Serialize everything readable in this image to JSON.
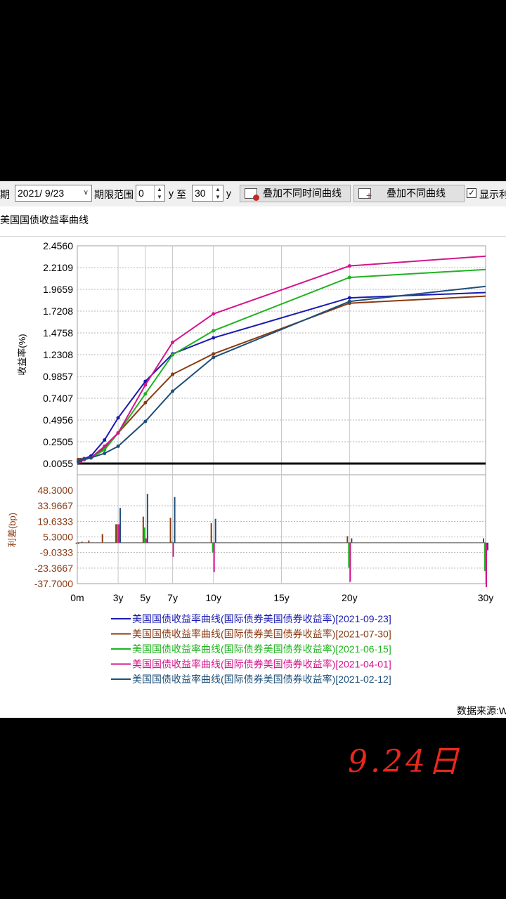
{
  "toolbar": {
    "date_label": "日期",
    "date_value": "2021/  9/23",
    "range_label": "期限范围",
    "range_from": "0",
    "unit_y1": "y",
    "to_label": "至",
    "range_to": "30",
    "unit_y2": "y",
    "btn_overlay_time": "叠加不同时间曲线",
    "btn_overlay_curve": "叠加不同曲线",
    "show_label": "显示利差"
  },
  "subtitle": "美国国债收益率曲线",
  "source_label": "数据来源:Wind",
  "date_stamp": "9.24日",
  "chart_data": {
    "type": "line",
    "upper": {
      "ylabel": "收益率(%)",
      "ylim": [
        0.0055,
        2.456
      ],
      "yticks": [
        "2.4560",
        "2.2109",
        "1.9659",
        "1.7208",
        "1.4758",
        "1.2308",
        "0.9857",
        "0.7407",
        "0.4956",
        "0.2505",
        "0.0055"
      ],
      "baseline": 0.0055
    },
    "lower": {
      "type": "bar",
      "ylabel": "利差(bp)",
      "ylim": [
        -37.7,
        48.3
      ],
      "yticks": [
        "48.3000",
        "33.9667",
        "19.6333",
        "5.3000",
        "-9.0333",
        "-23.3667",
        "-37.7000"
      ]
    },
    "x_range": [
      0,
      30
    ],
    "x_ticks": [
      {
        "label": "0m",
        "value": 0
      },
      {
        "label": "3y",
        "value": 3
      },
      {
        "label": "5y",
        "value": 5
      },
      {
        "label": "7y",
        "value": 7
      },
      {
        "label": "10y",
        "value": 10
      },
      {
        "label": "15y",
        "value": 15
      },
      {
        "label": "20y",
        "value": 20
      },
      {
        "label": "30y",
        "value": 30
      }
    ],
    "series": [
      {
        "name": "美国国债收益率曲线(国际债券美国债券收益率)[2021-09-23]",
        "color": "#1a1ab0",
        "x": [
          0.083,
          0.25,
          0.5,
          1,
          2,
          3,
          5,
          7,
          10,
          20,
          30
        ],
        "y": [
          0.05,
          0.05,
          0.06,
          0.09,
          0.27,
          0.52,
          0.93,
          1.24,
          1.42,
          1.87,
          1.93
        ],
        "spread_bp": []
      },
      {
        "name": "美国国债收益率曲线(国际债券美国债券收益率)[2021-07-30]",
        "color": "#8b3a12",
        "x": [
          0.083,
          0.25,
          0.5,
          1,
          2,
          3,
          5,
          7,
          10,
          20,
          30
        ],
        "y": [
          0.05,
          0.05,
          0.05,
          0.07,
          0.18,
          0.35,
          0.69,
          1.01,
          1.24,
          1.81,
          1.89
        ],
        "spread_bp": [
          [
            0.083,
            -1
          ],
          [
            0.25,
            -1
          ],
          [
            0.5,
            1
          ],
          [
            1,
            2
          ],
          [
            2,
            8
          ],
          [
            3,
            17
          ],
          [
            5,
            24
          ],
          [
            7,
            23
          ],
          [
            10,
            18
          ],
          [
            20,
            6
          ],
          [
            30,
            4
          ]
        ]
      },
      {
        "name": "美国国债收益率曲线(国际债券美国债券收益率)[2021-06-15]",
        "color": "#1fb31f",
        "x": [
          0.083,
          0.25,
          0.5,
          1,
          2,
          3,
          5,
          7,
          10,
          20,
          30
        ],
        "y": [
          0.03,
          0.04,
          0.05,
          0.07,
          0.16,
          0.35,
          0.79,
          1.23,
          1.5,
          2.1,
          2.19
        ],
        "spread_bp": [
          [
            3,
            17
          ],
          [
            5,
            14
          ],
          [
            7,
            1
          ],
          [
            10,
            -9
          ],
          [
            20,
            -23
          ],
          [
            30,
            -26
          ]
        ]
      },
      {
        "name": "美国国债收益率曲线(国际债券美国债券收益率)[2021-04-01]",
        "color": "#d4158e",
        "x": [
          0.083,
          0.25,
          0.5,
          1,
          2,
          3,
          5,
          7,
          10,
          20,
          30
        ],
        "y": [
          0.02,
          0.03,
          0.05,
          0.07,
          0.2,
          0.35,
          0.89,
          1.37,
          1.69,
          2.23,
          2.34
        ],
        "spread_bp": [
          [
            3,
            17
          ],
          [
            5,
            4
          ],
          [
            7,
            -13
          ],
          [
            10,
            -27
          ],
          [
            20,
            -36
          ],
          [
            30,
            -41
          ]
        ]
      },
      {
        "name": "美国国债收益率曲线(国际债券美国债券收益率)[2021-02-12]",
        "color": "#1e4f78",
        "x": [
          0.083,
          0.25,
          0.5,
          1,
          2,
          3,
          5,
          7,
          10,
          20,
          30
        ],
        "y": [
          0.03,
          0.04,
          0.06,
          0.07,
          0.12,
          0.2,
          0.48,
          0.82,
          1.2,
          1.83,
          2.0
        ],
        "spread_bp": [
          [
            3,
            32
          ],
          [
            5,
            45
          ],
          [
            7,
            42
          ],
          [
            10,
            22
          ],
          [
            20,
            4
          ],
          [
            30,
            -7
          ]
        ]
      }
    ]
  }
}
